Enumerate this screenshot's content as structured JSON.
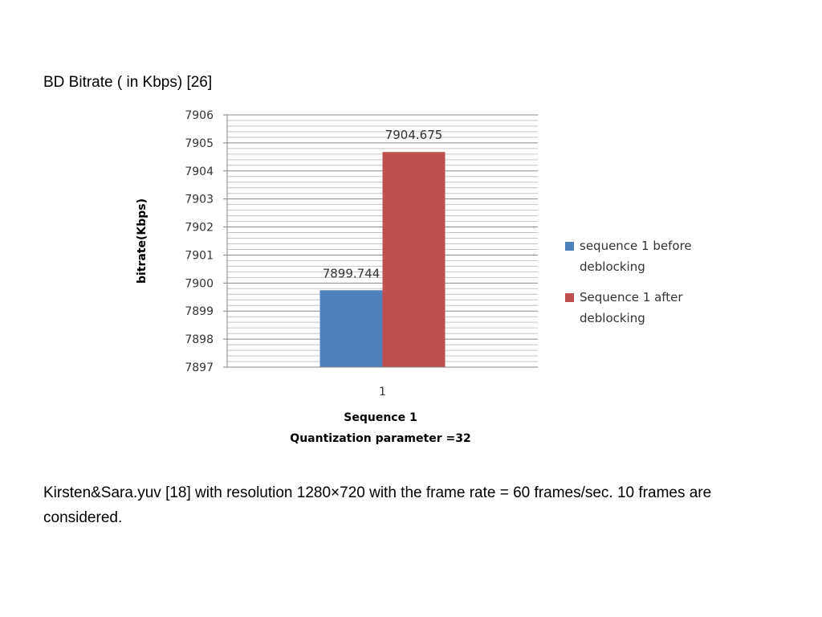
{
  "page": {
    "title": "BD Bitrate ( in Kbps) [26]",
    "caption": "Kirsten&Sara.yuv [18] with resolution 1280×720 with the frame rate = 60 frames/sec. 10 frames are considered."
  },
  "chart_data": {
    "type": "bar",
    "categories": [
      "1"
    ],
    "series": [
      {
        "name": "sequence 1 before deblocking",
        "values": [
          7899.744
        ],
        "color": "#4f81bd"
      },
      {
        "name": "Sequence 1 after deblocking",
        "values": [
          7904.675
        ],
        "color": "#c0504d"
      }
    ],
    "data_labels": [
      "7899.744",
      "7904.675"
    ],
    "ylabel": "bitrate(Kbps)",
    "xlabel_lines": [
      "Sequence 1",
      "Quantization parameter =32"
    ],
    "ylim": [
      7897,
      7906
    ],
    "yticks": [
      7897,
      7898,
      7899,
      7900,
      7901,
      7902,
      7903,
      7904,
      7905,
      7906
    ],
    "minor_grid_step": 0.2,
    "grid": true,
    "legend_position": "right"
  }
}
